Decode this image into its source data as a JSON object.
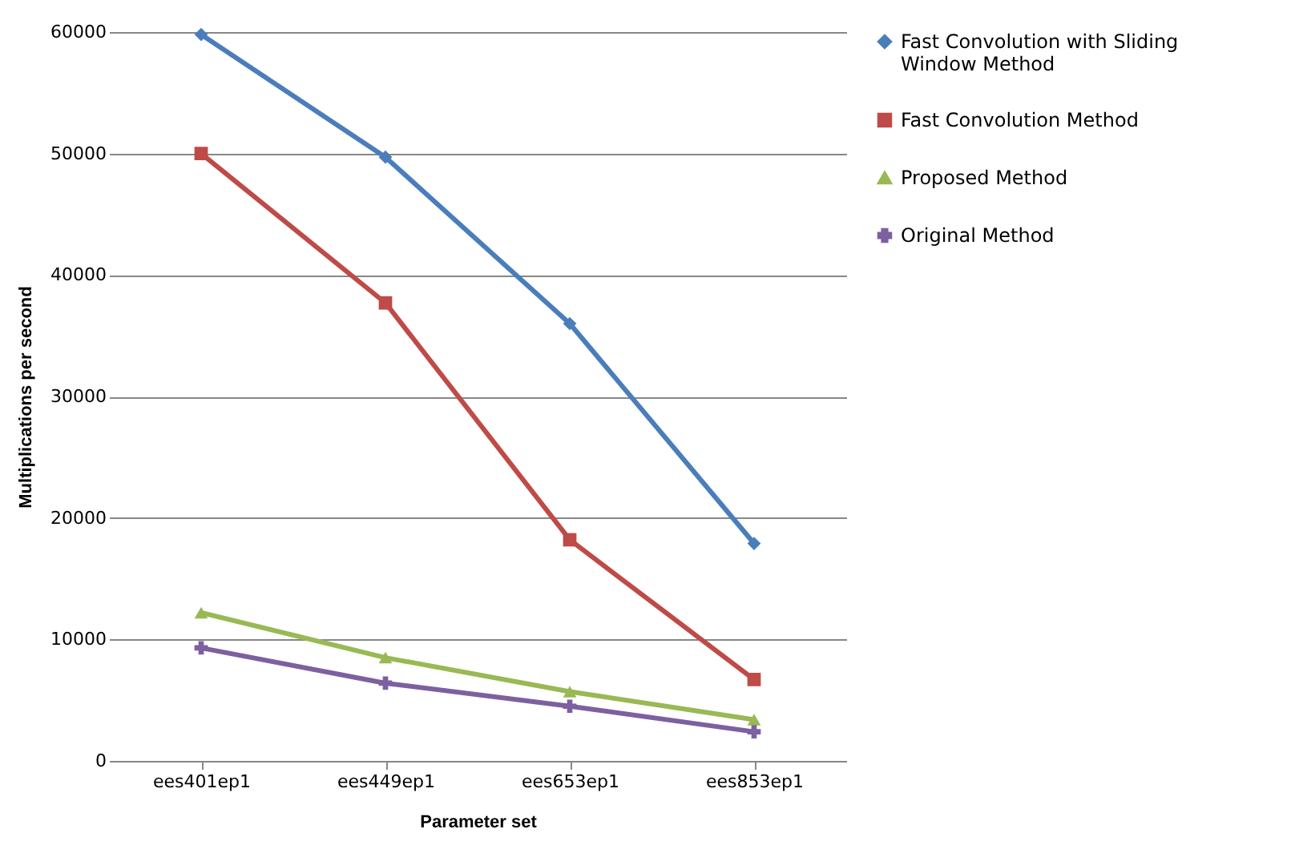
{
  "chart_data": {
    "type": "line",
    "xlabel": "Parameter set",
    "ylabel": "Multiplications per second",
    "categories": [
      "ees401ep1",
      "ees449ep1",
      "ees653ep1",
      "ees853ep1"
    ],
    "series": [
      {
        "name": "Fast Convolution with Sliding Window Method",
        "color": "#4a7ebb",
        "marker": "diamond",
        "values": [
          59800,
          49700,
          36000,
          17900
        ]
      },
      {
        "name": "Fast Convolution Method",
        "color": "#be4b48",
        "marker": "square",
        "values": [
          50000,
          37700,
          18200,
          6700
        ]
      },
      {
        "name": "Proposed Method",
        "color": "#98b954",
        "marker": "triangle",
        "values": [
          12200,
          8500,
          5700,
          3400
        ]
      },
      {
        "name": "Original Method",
        "color": "#7d60a0",
        "marker": "cross",
        "values": [
          9300,
          6400,
          4500,
          2400
        ]
      }
    ],
    "ylim": [
      0,
      60000
    ],
    "yticks": [
      0,
      10000,
      20000,
      30000,
      40000,
      50000,
      60000
    ],
    "grid": "y",
    "legend": "right",
    "line_style": "solid"
  }
}
